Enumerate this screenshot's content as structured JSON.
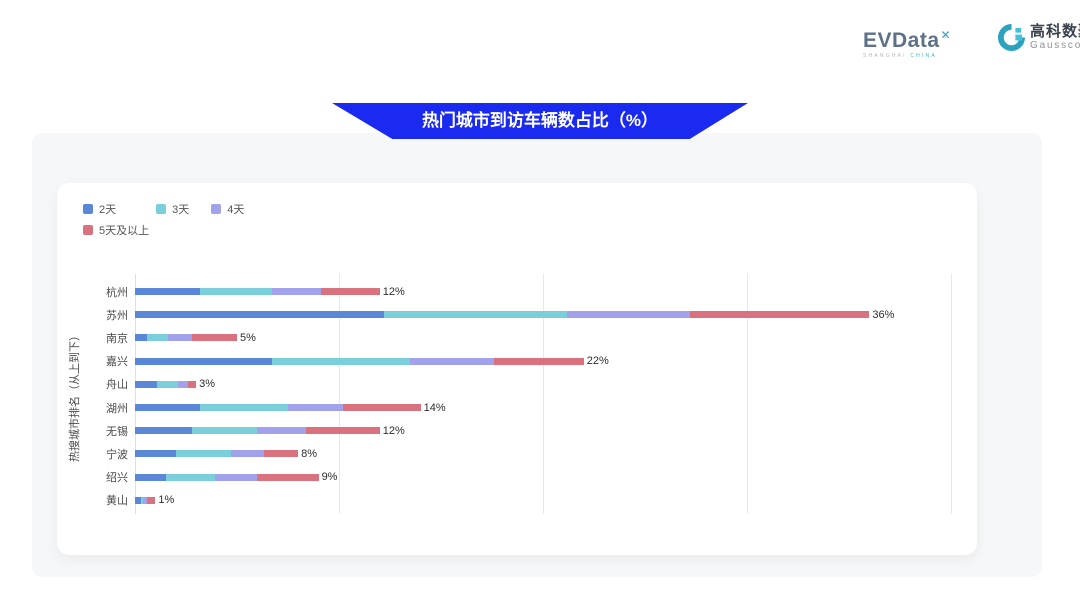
{
  "header": {
    "evdata": {
      "wordmark": "EVData",
      "sup_mark": "✕",
      "sub_left": "SHANGHAI ",
      "sub_right": "CHINA"
    },
    "gausscode": {
      "cn_name": "高科数聚",
      "en_name": "Gausscode"
    }
  },
  "banner": {
    "title": "热门城市到访车辆数占比（%）",
    "color": "#1b2af0"
  },
  "colors": {
    "panel_bg": "#f6f7f8",
    "card_bg": "#ffffff",
    "gridline": "#e8e8ec",
    "series_blue": "#5a87d8",
    "series_teal": "#7bcfda",
    "series_purple": "#a2a1ec",
    "series_red": "#d9717f"
  },
  "chart_data": {
    "type": "bar",
    "orientation": "horizontal",
    "stacked": true,
    "title": "热门城市到访车辆数占比（%）",
    "xlabel": "",
    "ylabel": "热搜城市排名（从上到下）",
    "xlim": [
      0,
      40
    ],
    "grid_step": 10,
    "grid": true,
    "legend_position": "top-left",
    "categories": [
      "杭州",
      "苏州",
      "南京",
      "嘉兴",
      "舟山",
      "湖州",
      "无锡",
      "宁波",
      "绍兴",
      "黄山"
    ],
    "series": [
      {
        "name": "2天",
        "color": "#5a87d8",
        "values": [
          3.2,
          12.2,
          0.6,
          6.7,
          1.1,
          3.2,
          2.8,
          2.0,
          1.5,
          0.3
        ]
      },
      {
        "name": "3天",
        "color": "#7bcfda",
        "values": [
          3.5,
          9.0,
          1.0,
          6.8,
          1.0,
          4.3,
          3.2,
          2.7,
          2.4,
          0.1
        ]
      },
      {
        "name": "4天",
        "color": "#a2a1ec",
        "values": [
          2.4,
          6.0,
          1.2,
          4.1,
          0.5,
          2.7,
          2.4,
          1.6,
          2.1,
          0.2
        ]
      },
      {
        "name": "5天及以上",
        "color": "#d9717f",
        "values": [
          2.9,
          8.8,
          2.2,
          4.4,
          0.4,
          3.8,
          3.6,
          1.7,
          3.0,
          0.4
        ]
      }
    ],
    "totals": [
      12,
      36,
      5,
      22,
      3,
      14,
      12,
      8,
      9,
      1
    ],
    "total_labels": [
      "12%",
      "36%",
      "5%",
      "22%",
      "3%",
      "14%",
      "12%",
      "8%",
      "9%",
      "1%"
    ]
  }
}
